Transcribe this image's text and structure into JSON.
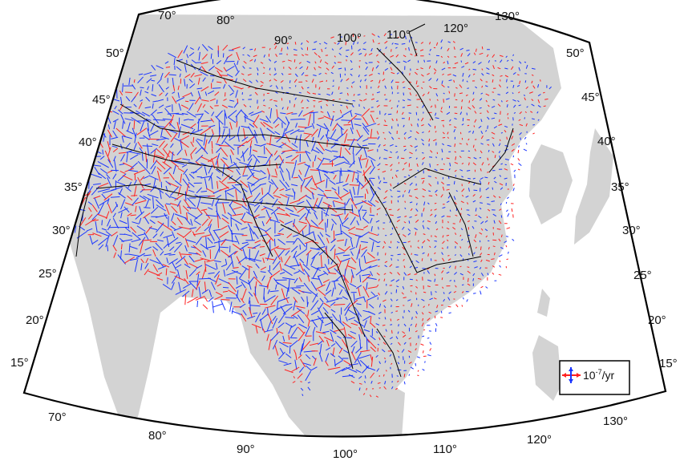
{
  "map": {
    "colors": {
      "land": "#d3d3d3",
      "ocean": "#ffffff",
      "frame": "#000000",
      "fault_lines": "#000000",
      "strain_compression": "#1a35ff",
      "strain_extension": "#ff2020"
    },
    "longitude_labels_top": [
      "70°",
      "80°",
      "90°",
      "100°",
      "110°",
      "120°",
      "130°"
    ],
    "longitude_labels_bottom": [
      "70°",
      "80°",
      "90°",
      "100°",
      "110°",
      "120°",
      "130°"
    ],
    "latitude_labels_left": [
      "50°",
      "45°",
      "40°",
      "35°",
      "30°",
      "25°",
      "20°",
      "15°"
    ],
    "latitude_labels_right": [
      "50°",
      "45°",
      "40°",
      "35°",
      "30°",
      "25°",
      "20°",
      "15°"
    ],
    "legend": {
      "base": "10",
      "exponent": "-7",
      "unit": "/yr",
      "icon": "strain-cross-icon"
    }
  }
}
